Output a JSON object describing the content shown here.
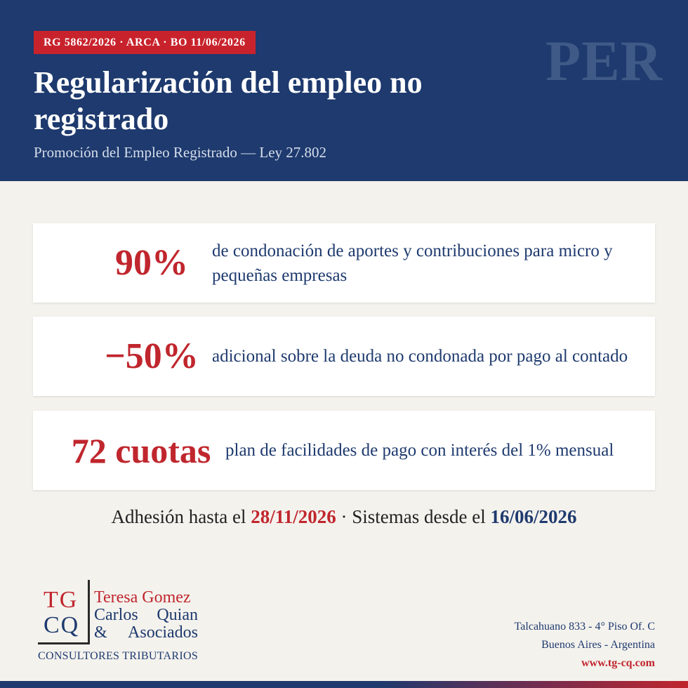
{
  "header": {
    "tag": "RG 5862/2026 · ARCA · BO 11/06/2026",
    "watermark": "PER",
    "title": "Regularización del empleo no registrado",
    "subtitle": "Promoción del Empleo Registrado — Ley 27.802"
  },
  "cards": [
    {
      "value": "90%",
      "description": "de condonación de aportes y contribuciones para micro y pequeñas empresas"
    },
    {
      "value": "−50%",
      "description": "adicional sobre la deuda no condonada por pago al contado"
    },
    {
      "value": "72 cuotas",
      "description": "plan de facilidades de pago con interés del 1% mensual"
    }
  ],
  "dates": {
    "prefix": "Adhesión hasta el",
    "adhesion_date": "28/11/2026",
    "separator": "· Sistemas desde el",
    "systems_date": "16/06/2026"
  },
  "logo": {
    "tg": "TG",
    "cq": "CQ",
    "name_line1": "Teresa Gomez",
    "name_line2_a": "Carlos",
    "name_line2_b": "Quian",
    "name_line3_a": "&",
    "name_line3_b": "Asociados",
    "tagline": "CONSULTORES TRIBUTARIOS"
  },
  "contact": {
    "address": "Talcahuano 833 - 4° Piso Of. C",
    "city": "Buenos Aires - Argentina",
    "website": "www.tg-cq.com"
  },
  "colors": {
    "navy": "#1e3a6e",
    "red": "#c0262d",
    "background": "#f4f2ed"
  }
}
